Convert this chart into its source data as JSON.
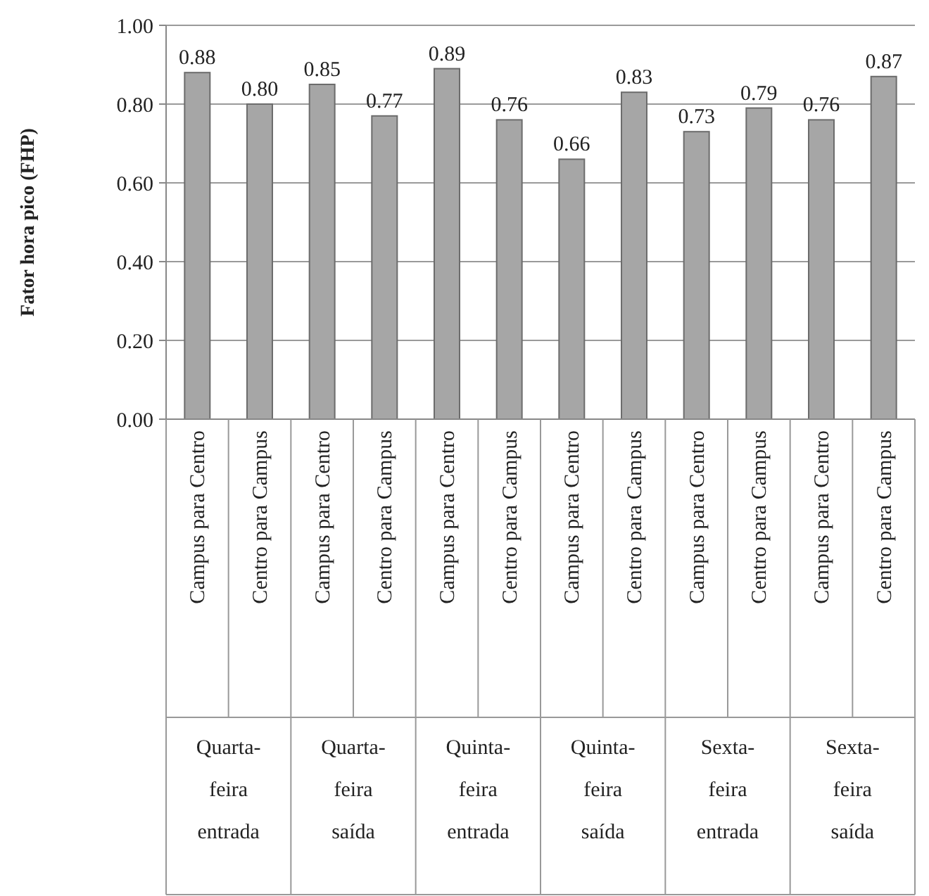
{
  "chart_data": {
    "type": "bar",
    "ylabel": "Fator hora pico (FHP)",
    "categories": [
      "Campus para Centro",
      "Centro para Campus",
      "Campus para Centro",
      "Centro para Campus",
      "Campus para Centro",
      "Centro para Campus",
      "Campus para Centro",
      "Centro para Campus",
      "Campus para Centro",
      "Centro para Campus",
      "Campus para Centro",
      "Centro para Campus"
    ],
    "values": [
      0.88,
      0.8,
      0.85,
      0.77,
      0.89,
      0.76,
      0.66,
      0.83,
      0.73,
      0.79,
      0.76,
      0.87
    ],
    "value_labels": [
      "0.88",
      "0.80",
      "0.85",
      "0.77",
      "0.89",
      "0.76",
      "0.66",
      "0.83",
      "0.73",
      "0.79",
      "0.76",
      "0.87"
    ],
    "color": "#a6a6a6",
    "ylim": [
      0,
      1
    ],
    "yticks": [
      {
        "value": 0,
        "label": "0.00"
      },
      {
        "value": 0.2,
        "label": "0.20"
      },
      {
        "value": 0.4,
        "label": "0.40"
      },
      {
        "value": 0.6,
        "label": "0.60"
      },
      {
        "value": 0.8,
        "label": "0.80"
      },
      {
        "value": 1,
        "label": "1.00"
      }
    ],
    "grid": "y",
    "annotations": [
      "Quarta-feira entrada",
      "Quarta-feira saída",
      "Quinta-feira entrada",
      "Quinta-feira saída",
      "Sexta-feira entrada",
      "Sexta-feira saída"
    ]
  }
}
